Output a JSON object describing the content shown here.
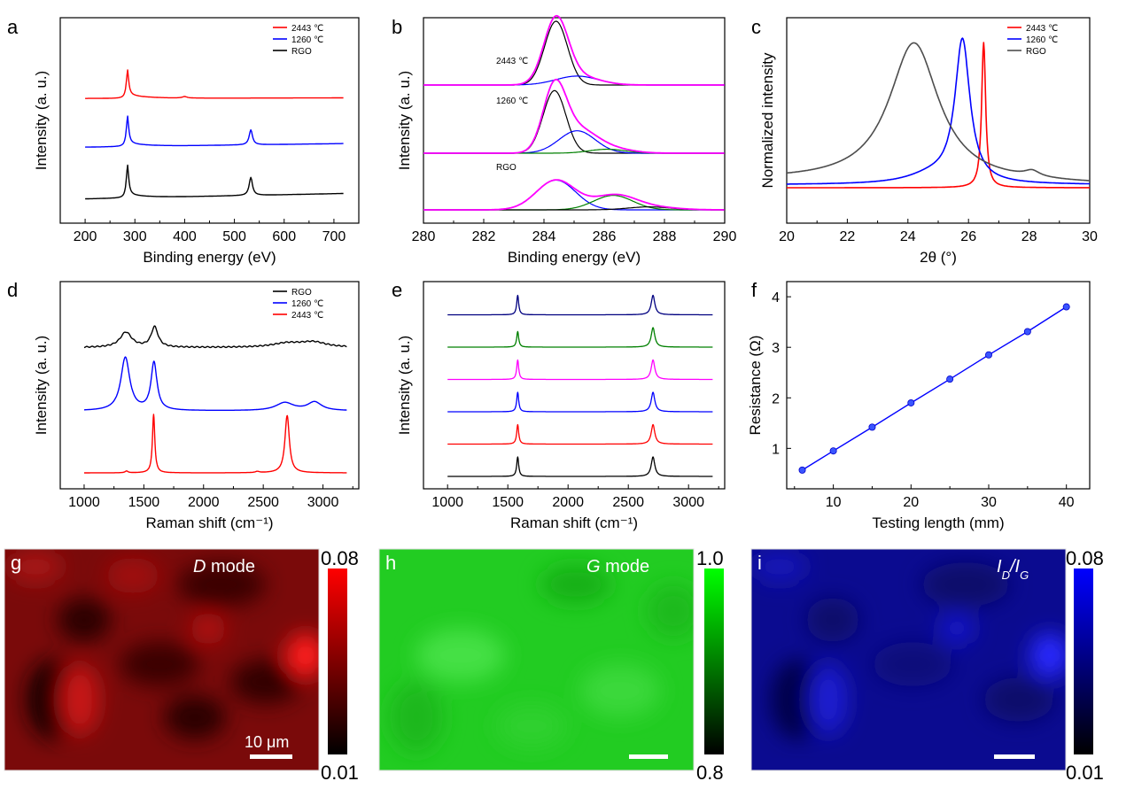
{
  "chart_data": [
    {
      "panel": "a",
      "type": "line",
      "xlabel": "Binding energy (eV)",
      "ylabel": "Intensity (a. u.)",
      "xlim": [
        150,
        750
      ],
      "xticks": [
        200,
        300,
        400,
        500,
        600,
        700
      ],
      "legend": {
        "placement": "top-right",
        "entries": [
          "2443 ℃",
          "1260 ℃",
          "RGO"
        ]
      },
      "series": [
        {
          "name": "2443 ℃",
          "color": "#ff0000",
          "offset": 2,
          "baseline": 0.2,
          "end": 0.22,
          "peaks": [
            [
              285,
              0.85,
              3
            ],
            [
              400,
              0.05,
              6
            ]
          ]
        },
        {
          "name": "1260 ℃",
          "color": "#0000ff",
          "offset": 1,
          "baseline": 0.2,
          "end": 0.32,
          "peaks": [
            [
              285,
              0.92,
              3
            ],
            [
              533,
              0.5,
              4
            ]
          ]
        },
        {
          "name": "RGO",
          "color": "#000000",
          "offset": 0,
          "baseline": 0.1,
          "end": 0.28,
          "peaks": [
            [
              285,
              1.0,
              3
            ],
            [
              533,
              0.6,
              4
            ]
          ]
        }
      ]
    },
    {
      "panel": "b",
      "type": "line",
      "xlabel": "Binding energy (eV)",
      "ylabel": "Intensity (a. u.)",
      "xlim": [
        280,
        290
      ],
      "xticks": [
        280,
        282,
        284,
        286,
        288,
        290
      ],
      "annotations": [
        "2443 ℃",
        "1260 ℃",
        "RGO"
      ],
      "groups": [
        {
          "name": "2443 ℃",
          "offset": 2,
          "components": [
            {
              "color": "#000000",
              "peaks": [
                [
                  284.4,
                  1.0,
                  0.38
                ]
              ]
            },
            {
              "color": "#0000ff",
              "peaks": [
                [
                  285.1,
                  0.14,
                  0.7
                ]
              ]
            },
            {
              "color": "#ff00ff",
              "peaks": [
                [
                  284.4,
                  1.0,
                  0.4
                ],
                [
                  285.1,
                  0.14,
                  0.7
                ]
              ]
            }
          ]
        },
        {
          "name": "1260 ℃",
          "offset": 1,
          "components": [
            {
              "color": "#000000",
              "peaks": [
                [
                  284.35,
                  0.95,
                  0.38
                ]
              ]
            },
            {
              "color": "#0000ff",
              "peaks": [
                [
                  285.1,
                  0.34,
                  0.6
                ]
              ]
            },
            {
              "color": "#008000",
              "peaks": [
                [
                  286.1,
                  0.06,
                  0.6
                ]
              ]
            },
            {
              "color": "#ff00ff",
              "peaks": [
                [
                  284.35,
                  0.95,
                  0.38
                ],
                [
                  285.1,
                  0.34,
                  0.6
                ],
                [
                  286.1,
                  0.08,
                  0.7
                ]
              ]
            }
          ]
        },
        {
          "name": "RGO",
          "offset": 0,
          "components": [
            {
              "color": "#0000ff",
              "peaks": [
                [
                  284.4,
                  0.7,
                  0.65
                ]
              ]
            },
            {
              "color": "#008000",
              "peaks": [
                [
                  286.3,
                  0.34,
                  0.65
                ]
              ]
            },
            {
              "color": "#000000",
              "peaks": [
                [
                  287.5,
                  0.07,
                  0.7
                ]
              ]
            },
            {
              "color": "#ff00ff",
              "peaks": [
                [
                  284.4,
                  0.7,
                  0.65
                ],
                [
                  286.35,
                  0.34,
                  0.7
                ],
                [
                  287.6,
                  0.06,
                  0.8
                ]
              ]
            }
          ]
        }
      ]
    },
    {
      "panel": "c",
      "type": "line",
      "xlabel": "2θ (°)",
      "ylabel": "Normalized intensity",
      "xlim": [
        20,
        30
      ],
      "ylim": [
        0,
        1.05
      ],
      "xticks": [
        20,
        22,
        24,
        26,
        28,
        30
      ],
      "legend": {
        "placement": "top-right",
        "entries": [
          "2443 ℃",
          "1260 ℃",
          "RGO"
        ]
      },
      "series": [
        {
          "name": "2443 ℃",
          "color": "#ff0000",
          "baseline": 0.0,
          "peaks": [
            [
              26.5,
              1.0,
              0.08
            ]
          ]
        },
        {
          "name": "1260 ℃",
          "color": "#0000ff",
          "baseline": 0.02,
          "peaks": [
            [
              25.8,
              0.98,
              0.3
            ],
            [
              24.8,
              0.06,
              1.0
            ]
          ]
        },
        {
          "name": "RGO",
          "color": "#4d4d4d",
          "baseline": 0.02,
          "peaks": [
            [
              24.2,
              0.96,
              1.0
            ],
            [
              28.1,
              0.04,
              0.3
            ]
          ]
        }
      ]
    },
    {
      "panel": "d",
      "type": "line",
      "xlabel": "Raman shift (cm⁻¹)",
      "ylabel": "Intensity (a. u.)",
      "xlim": [
        800,
        3300
      ],
      "xticks": [
        1000,
        1500,
        2000,
        2500,
        3000
      ],
      "legend": {
        "placement": "top-right",
        "entries": [
          "RGO",
          "1260 ℃",
          "2443 ℃"
        ]
      },
      "series": [
        {
          "name": "RGO",
          "color": "#000000",
          "offset": 2,
          "peaks": [
            [
              1350,
              0.45,
              60
            ],
            [
              1590,
              0.6,
              35
            ],
            [
              2700,
              0.12,
              150
            ],
            [
              2920,
              0.15,
              130
            ]
          ]
        },
        {
          "name": "1260 ℃",
          "color": "#0000ff",
          "offset": 1,
          "peaks": [
            [
              1345,
              1.0,
              45
            ],
            [
              1585,
              0.9,
              30
            ],
            [
              2680,
              0.15,
              90
            ],
            [
              2930,
              0.16,
              70
            ]
          ]
        },
        {
          "name": "2443 ℃",
          "color": "#ff0000",
          "offset": 0,
          "peaks": [
            [
              1582,
              1.0,
              12
            ],
            [
              2700,
              0.98,
              22
            ],
            [
              1355,
              0.03,
              15
            ],
            [
              2450,
              0.02,
              20
            ]
          ]
        }
      ]
    },
    {
      "panel": "e",
      "type": "line",
      "xlabel": "Raman shift (cm⁻¹)",
      "ylabel": "Intensity (a. u.)",
      "xlim": [
        800,
        3300
      ],
      "xticks": [
        1000,
        1500,
        2000,
        2500,
        3000
      ],
      "series": [
        {
          "color": "#000080",
          "offset": 5,
          "peaks": [
            [
              1582,
              1.0,
              10
            ],
            [
              2705,
              1.0,
              18
            ]
          ]
        },
        {
          "color": "#008000",
          "offset": 4,
          "peaks": [
            [
              1582,
              0.8,
              10
            ],
            [
              2705,
              1.0,
              18
            ]
          ]
        },
        {
          "color": "#ff00ff",
          "offset": 3,
          "peaks": [
            [
              1582,
              1.0,
              10
            ],
            [
              2705,
              1.0,
              18
            ]
          ]
        },
        {
          "color": "#0000ff",
          "offset": 2,
          "peaks": [
            [
              1582,
              1.0,
              10
            ],
            [
              2705,
              1.0,
              18
            ]
          ]
        },
        {
          "color": "#ff0000",
          "offset": 1,
          "peaks": [
            [
              1582,
              1.0,
              10
            ],
            [
              2705,
              1.0,
              18
            ]
          ]
        },
        {
          "color": "#000000",
          "offset": 0,
          "peaks": [
            [
              1582,
              1.0,
              10
            ],
            [
              2705,
              1.0,
              18
            ]
          ]
        }
      ]
    },
    {
      "panel": "f",
      "type": "scatter",
      "xlabel": "Testing length (mm)",
      "ylabel": "Resistance (Ω)",
      "xlim": [
        4,
        43
      ],
      "ylim": [
        0.2,
        4.3
      ],
      "xticks": [
        10,
        20,
        30,
        40
      ],
      "yticks": [
        1,
        2,
        3,
        4
      ],
      "color": "#0000ff",
      "x": [
        6,
        10,
        15,
        20,
        25,
        30,
        35,
        40
      ],
      "y": [
        0.57,
        0.95,
        1.42,
        1.9,
        2.37,
        2.85,
        3.31,
        3.8
      ]
    },
    {
      "panel": "g",
      "type": "heatmap",
      "label": "D mode",
      "colorbar": {
        "max": "0.08",
        "min": "0.01",
        "colors": [
          "#000000",
          "#ff0000"
        ]
      },
      "scalebar": "10 μm"
    },
    {
      "panel": "h",
      "type": "heatmap",
      "label": "G mode",
      "colorbar": {
        "max": "1.0",
        "min": "0.8",
        "colors": [
          "#000000",
          "#00ff00"
        ]
      }
    },
    {
      "panel": "i",
      "type": "heatmap",
      "label": "I_D/I_G",
      "colorbar": {
        "max": "0.08",
        "min": "0.01",
        "colors": [
          "#000000",
          "#0000ff"
        ]
      }
    }
  ],
  "labels": {
    "a": "a",
    "b": "b",
    "c": "c",
    "d": "d",
    "e": "e",
    "f": "f",
    "g": "g",
    "h": "h",
    "i": "i",
    "g_mode_italic": "D",
    "g_mode_rest": " mode",
    "h_mode_italic": "G",
    "h_mode_rest": " mode",
    "i_id": "I",
    "i_id_sub": "D",
    "i_slash": "/",
    "i_ig": "I",
    "i_ig_sub": "G",
    "scalebar": "10 μm"
  }
}
